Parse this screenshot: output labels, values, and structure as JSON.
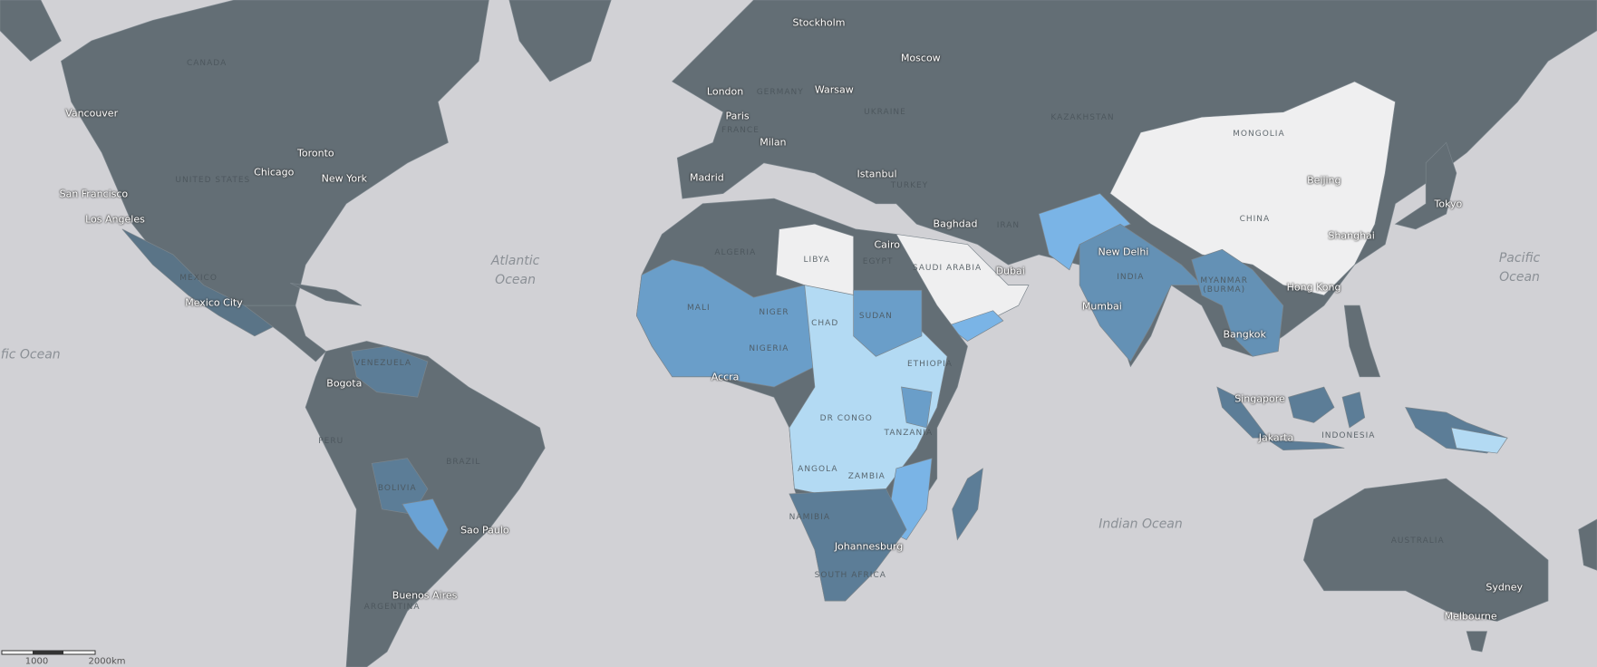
{
  "map": {
    "oceans": [
      "Atlantic Ocean",
      "Pacific Ocean",
      "fic Ocean",
      "Indian Ocean"
    ],
    "countries": [
      "CANADA",
      "UNITED STATES",
      "MEXICO",
      "VENEZUELA",
      "PERU",
      "BRAZIL",
      "BOLIVIA",
      "ARGENTINA",
      "GERMANY",
      "UKRAINE",
      "FRANCE",
      "TURKEY",
      "KAZAKHSTAN",
      "MONGOLIA",
      "IRAN",
      "EGYPT",
      "LIBYA",
      "ALGERIA",
      "SAUDI ARABIA",
      "INDIA",
      "CHINA",
      "MYANMAR (BURMA)",
      "MALI",
      "NIGER",
      "CHAD",
      "SUDAN",
      "NIGERIA",
      "ETHIOPIA",
      "DR CONGO",
      "TANZANIA",
      "ANGOLA",
      "ZAMBIA",
      "NAMIBIA",
      "SOUTH AFRICA",
      "INDONESIA",
      "AUSTRALIA"
    ],
    "cities": [
      "Vancouver",
      "San Francisco",
      "Los Angeles",
      "Chicago",
      "Toronto",
      "New York",
      "Mexico City",
      "Bogota",
      "Sao Paulo",
      "Buenos Aires",
      "Stockholm",
      "Moscow",
      "London",
      "Warsaw",
      "Paris",
      "Milan",
      "Madrid",
      "Istanbul",
      "Baghdad",
      "Cairo",
      "Dubai",
      "New Delhi",
      "Mumbai",
      "Beijing",
      "Tokyo",
      "Shanghai",
      "Hong Kong",
      "Bangkok",
      "Singapore",
      "Jakarta",
      "Accra",
      "Johannesburg",
      "Sydney",
      "Melbourne"
    ]
  },
  "scale": {
    "labels": [
      "1000",
      "2000km"
    ]
  }
}
